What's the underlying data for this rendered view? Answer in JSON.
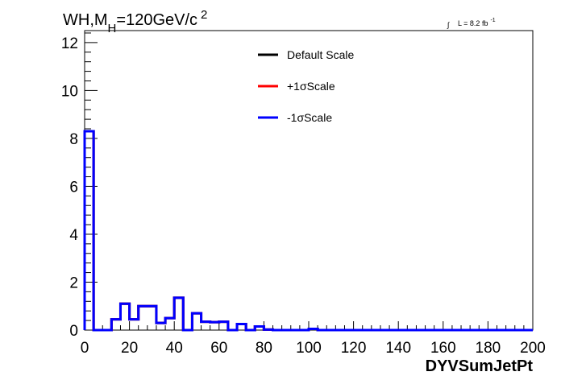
{
  "chart_data": {
    "type": "line",
    "title": {
      "main": "WH,M",
      "sub": "H",
      "rest": "=120GeV/c",
      "sup": "2"
    },
    "lumi": {
      "integral": "∫",
      "text": "L = 8.2 fb",
      "sup": "-1"
    },
    "xlabel": "DYVSumJetPt",
    "xlim": [
      0,
      200
    ],
    "ylim": [
      0,
      12.5
    ],
    "xticks": [
      0,
      20,
      40,
      60,
      80,
      100,
      120,
      140,
      160,
      180,
      200
    ],
    "yticks": [
      0,
      2,
      4,
      6,
      8,
      10,
      12
    ],
    "bin_width": 4,
    "bin_edges_start": 0,
    "series": [
      {
        "name": "Default Scale",
        "color": "#000000",
        "values": [
          8.3,
          0.0,
          0.0,
          0.45,
          1.1,
          0.45,
          1.0,
          1.0,
          0.3,
          0.5,
          1.35,
          0.0,
          0.7,
          0.35,
          0.33,
          0.35,
          0.0,
          0.25,
          0.0,
          0.15,
          0.02,
          0.0,
          0.0,
          0.0,
          0.0,
          0.05,
          0.0,
          0.0,
          0.0,
          0.0,
          0.0,
          0.0,
          0.0,
          0.0,
          0.0,
          0.0,
          0.0,
          0.0,
          0.0,
          0.0,
          0.0,
          0.0,
          0.0,
          0.0,
          0.0,
          0.0,
          0.0,
          0.0,
          0.0,
          0.0
        ]
      },
      {
        "name": "+1σScale",
        "color": "#ff0000",
        "values": [
          8.3,
          0.0,
          0.0,
          0.45,
          1.1,
          0.45,
          1.0,
          1.0,
          0.3,
          0.5,
          1.35,
          0.0,
          0.7,
          0.35,
          0.33,
          0.35,
          0.0,
          0.25,
          0.0,
          0.15,
          0.02,
          0.0,
          0.0,
          0.0,
          0.0,
          0.05,
          0.0,
          0.0,
          0.0,
          0.0,
          0.0,
          0.0,
          0.0,
          0.0,
          0.0,
          0.0,
          0.0,
          0.0,
          0.0,
          0.0,
          0.0,
          0.0,
          0.0,
          0.0,
          0.0,
          0.0,
          0.0,
          0.0,
          0.0,
          0.0
        ]
      },
      {
        "name": "-1σScale",
        "color": "#0000ff",
        "values": [
          8.3,
          0.0,
          0.0,
          0.45,
          1.1,
          0.45,
          1.0,
          1.0,
          0.3,
          0.5,
          1.35,
          0.0,
          0.7,
          0.35,
          0.33,
          0.35,
          0.0,
          0.25,
          0.0,
          0.15,
          0.02,
          0.0,
          0.0,
          0.0,
          0.0,
          0.05,
          0.0,
          0.0,
          0.0,
          0.0,
          0.0,
          0.0,
          0.0,
          0.0,
          0.0,
          0.0,
          0.0,
          0.0,
          0.0,
          0.0,
          0.0,
          0.0,
          0.0,
          0.0,
          0.0,
          0.0,
          0.0,
          0.0,
          0.0,
          0.0
        ]
      }
    ],
    "legend_position": "top-center"
  }
}
